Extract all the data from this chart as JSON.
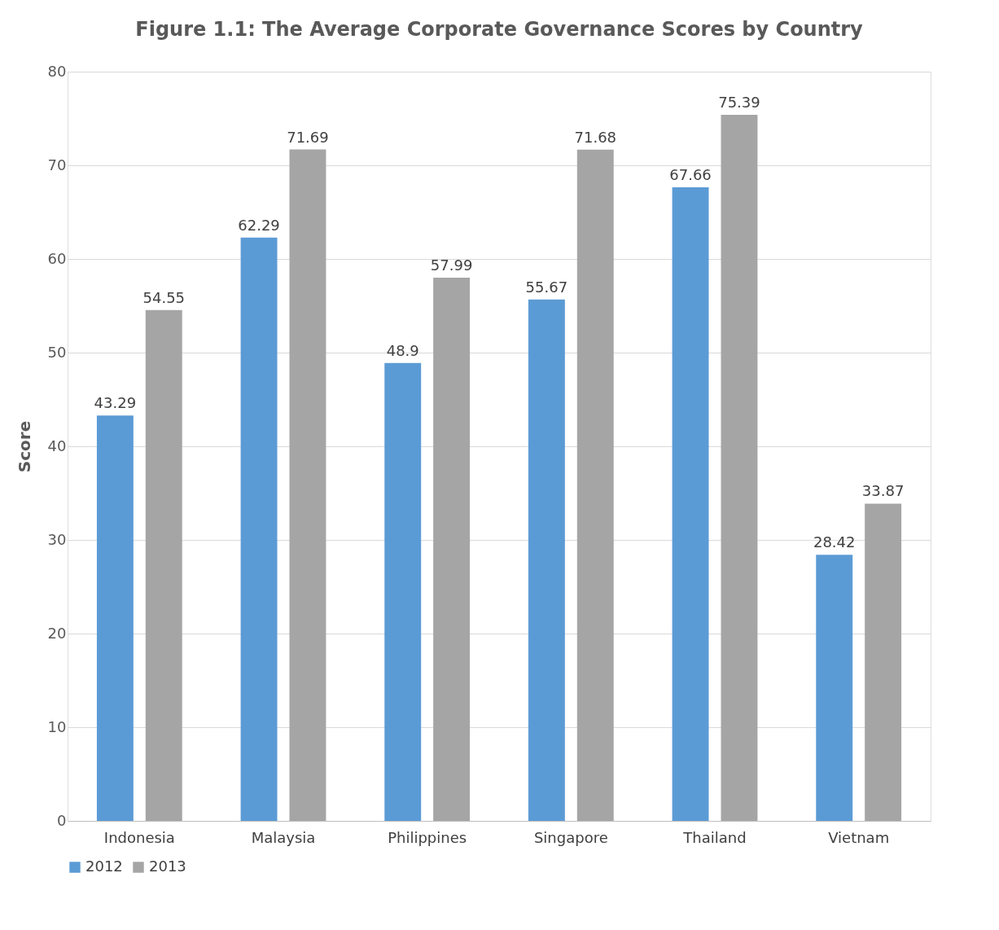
{
  "chart_data": {
    "type": "bar",
    "title": "Figure 1.1: The Average Corporate Governance Scores by Country",
    "ylabel": "Score",
    "categories": [
      "Indonesia",
      "Malaysia",
      "Philippines",
      "Singapore",
      "Thailand",
      "Vietnam"
    ],
    "series": [
      {
        "name": "2012",
        "color": "#5b9bd5",
        "values": [
          43.29,
          62.29,
          48.9,
          55.67,
          67.66,
          28.42
        ]
      },
      {
        "name": "2013",
        "color": "#a5a5a5",
        "values": [
          54.55,
          71.69,
          57.99,
          71.68,
          75.39,
          33.87
        ]
      }
    ],
    "ylim": [
      0,
      80
    ],
    "yticks": [
      0,
      10,
      20,
      30,
      40,
      50,
      60,
      70,
      80
    ],
    "grid": "y",
    "legend": "bottom",
    "data_labels": true
  }
}
